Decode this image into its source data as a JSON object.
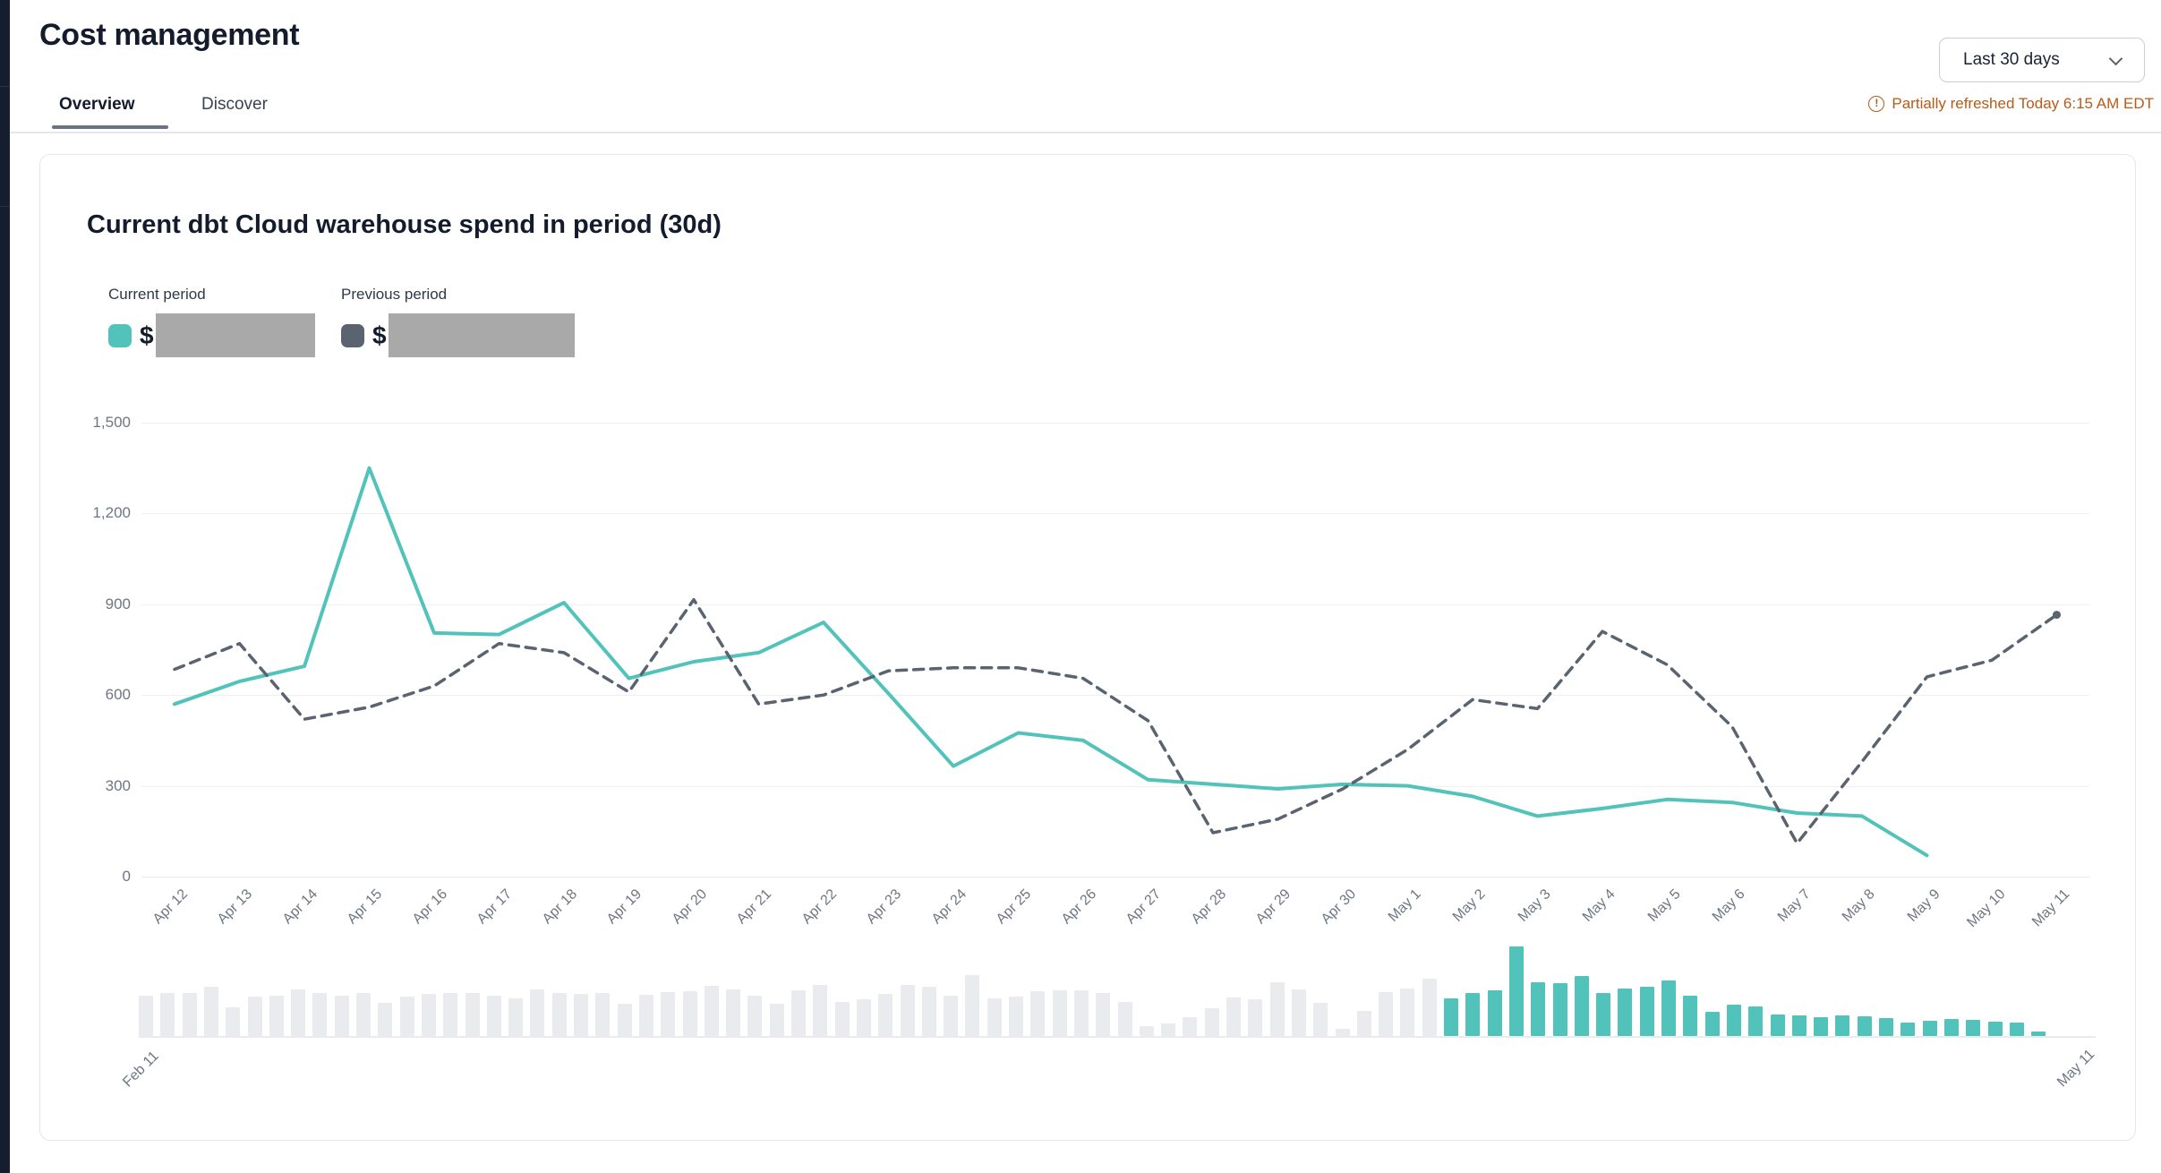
{
  "page": {
    "title": "Cost management"
  },
  "tabs": [
    {
      "label": "Overview",
      "active": true
    },
    {
      "label": "Discover",
      "active": false
    }
  ],
  "toolbar": {
    "date_range_value": "Last 30 days",
    "refresh_status": "Partially refreshed Today 6:15 AM EDT",
    "status_color": "#B95A17"
  },
  "card": {
    "title": "Current dbt Cloud warehouse spend in period (30d)",
    "legend": [
      {
        "label": "Current period",
        "currency_symbol": "$",
        "swatch_color": "#52C3BA",
        "value_redacted": true
      },
      {
        "label": "Previous period",
        "currency_symbol": "$",
        "swatch_color": "#5A6370",
        "value_redacted": true
      }
    ]
  },
  "chart_data": {
    "type": "line",
    "title": "Current dbt Cloud warehouse spend in period (30d)",
    "grid": true,
    "legend_position": "top-left",
    "ylim": [
      0,
      1500
    ],
    "ytick_values": [
      0,
      300,
      600,
      900,
      1200,
      1500
    ],
    "ytick_labels": [
      "0",
      "300",
      "600",
      "900",
      "1,200",
      "1,500"
    ],
    "x": [
      "Apr 12",
      "Apr 13",
      "Apr 14",
      "Apr 15",
      "Apr 16",
      "Apr 17",
      "Apr 18",
      "Apr 19",
      "Apr 20",
      "Apr 21",
      "Apr 22",
      "Apr 23",
      "Apr 24",
      "Apr 25",
      "Apr 26",
      "Apr 27",
      "Apr 28",
      "Apr 29",
      "Apr 30",
      "May 1",
      "May 2",
      "May 3",
      "May 4",
      "May 5",
      "May 6",
      "May 7",
      "May 8",
      "May 9",
      "May 10",
      "May 11"
    ],
    "series": [
      {
        "name": "Current period",
        "style": "solid",
        "color": "#52C3BA",
        "values": [
          570,
          645,
          695,
          1350,
          805,
          800,
          905,
          655,
          710,
          740,
          840,
          605,
          365,
          475,
          450,
          320,
          305,
          290,
          305,
          300,
          265,
          200,
          225,
          255,
          245,
          210,
          200,
          70,
          null,
          null
        ]
      },
      {
        "name": "Previous period",
        "style": "dashed",
        "color": "#5A6370",
        "end_dot": true,
        "values": [
          685,
          770,
          520,
          560,
          630,
          770,
          740,
          610,
          915,
          570,
          600,
          680,
          690,
          690,
          655,
          515,
          145,
          190,
          290,
          420,
          585,
          555,
          810,
          700,
          495,
          110,
          380,
          660,
          715,
          865
        ]
      }
    ],
    "brush": {
      "type": "bar",
      "x_start_label": "Feb 11",
      "x_end_label": "May 11",
      "days": 90,
      "selected_start_index": 60,
      "unselected_color": "#E9EBEE",
      "selected_color": "#52C3BA",
      "values": [
        610,
        655,
        655,
        745,
        435,
        590,
        610,
        700,
        655,
        610,
        655,
        500,
        590,
        630,
        655,
        655,
        610,
        565,
        700,
        655,
        640,
        650,
        490,
        620,
        660,
        680,
        750,
        700,
        610,
        480,
        685,
        770,
        520,
        560,
        630,
        770,
        740,
        610,
        915,
        570,
        600,
        680,
        690,
        690,
        655,
        515,
        145,
        190,
        290,
        420,
        585,
        555,
        810,
        700,
        495,
        110,
        380,
        660,
        715,
        865,
        570,
        645,
        695,
        1350,
        805,
        800,
        905,
        655,
        710,
        740,
        840,
        605,
        365,
        475,
        450,
        320,
        305,
        290,
        305,
        300,
        265,
        200,
        225,
        255,
        245,
        210,
        200,
        70,
        null,
        null
      ]
    }
  }
}
